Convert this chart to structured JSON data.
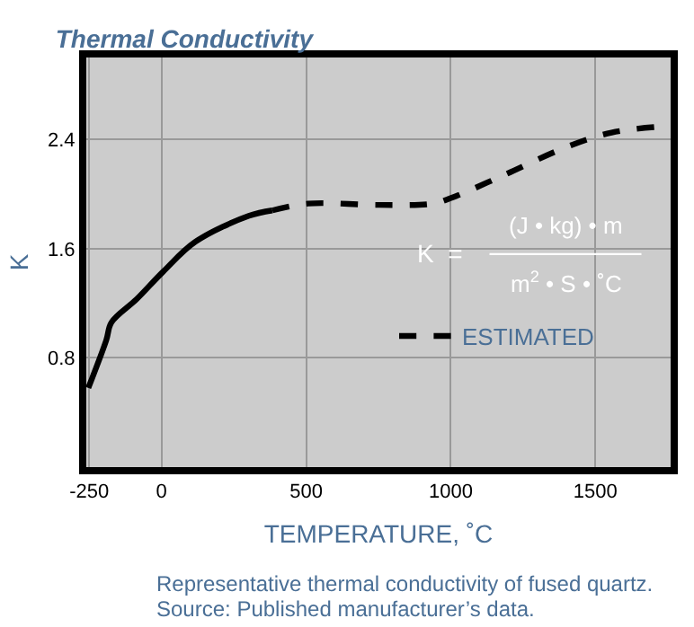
{
  "chart_data": {
    "type": "line",
    "title": "Thermal Conductivity",
    "xlabel": "TEMPERATURE, ˚C",
    "ylabel": "K",
    "series": [
      {
        "color": "#000000",
        "line_style": "solid",
        "x": [
          -253,
          -191,
          -173,
          -86,
          5,
          117,
          302,
          383
        ],
        "values": [
          0.58,
          0.93,
          1.06,
          1.23,
          1.43,
          1.65,
          1.84,
          1.88
        ]
      },
      {
        "name": "ESTIMATED",
        "color": "#000000",
        "line_style": "dashed",
        "x": [
          383,
          506,
          753,
          938,
          1000,
          1185,
          1395,
          1556,
          1704
        ],
        "values": [
          1.88,
          1.93,
          1.92,
          1.93,
          1.97,
          2.14,
          2.34,
          2.45,
          2.49
        ]
      }
    ],
    "xlim": [
      -260,
      1760
    ],
    "ylim": [
      0,
      3.0
    ],
    "xticks": [
      -250,
      0,
      500,
      1000,
      1500
    ],
    "yticks": [
      0.8,
      1.6,
      2.4
    ],
    "grid": true,
    "legend": "bottom right",
    "annotations": [
      "K  =",
      "(J • kg) • m",
      "m$^{2}$ • S • ˚C",
      "Representative thermal conductivity of fused quartz.",
      "Source: Published manufacturer’s data."
    ]
  }
}
